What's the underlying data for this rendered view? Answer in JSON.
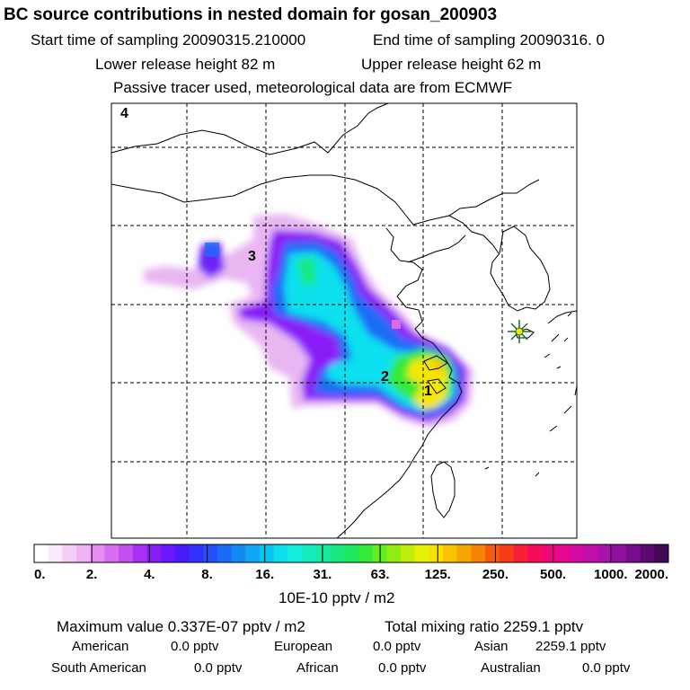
{
  "header": {
    "title": "BC  source contributions in nested domain for gosan_200903",
    "start_label": "Start time of sampling 20090315.210000",
    "end_label": "End time of sampling 20090316.     0",
    "lower_height": "Lower release height   82 m",
    "upper_height": "Upper release height   62 m",
    "tracer_note": "Passive tracer used, meteorological data are from ECMWF"
  },
  "chart_data": {
    "type": "heatmap",
    "title": "BC  source contributions in nested domain for gosan_200903",
    "map_labels": [
      "4",
      "3",
      "2",
      "1"
    ],
    "receptor": "gosan",
    "colorbar": {
      "ticks": [
        "0.",
        "2.",
        "4.",
        "8.",
        "16.",
        "31.",
        "63.",
        "125.",
        "250.",
        "500.",
        "1000.",
        "2000."
      ],
      "units": "10E-10 pptv / m2",
      "colors": [
        "#ffffff",
        "#fbe8fb",
        "#f5cdf7",
        "#efb3f3",
        "#e68ff1",
        "#d86cf0",
        "#c64ff2",
        "#a92ff5",
        "#8a1df7",
        "#6a18fa",
        "#4b1bfb",
        "#3232fb",
        "#2350fa",
        "#1a6cf7",
        "#1389f5",
        "#0ea7f3",
        "#0cc4f1",
        "#0ce0ee",
        "#12eddc",
        "#16ecc0",
        "#18eaa2",
        "#19e880",
        "#1de85f",
        "#35ea34",
        "#63ec22",
        "#91ee14",
        "#beef0a",
        "#e6f006",
        "#f8e004",
        "#f9c304",
        "#f9a405",
        "#f98306",
        "#f85c0c",
        "#f73c18",
        "#f72036",
        "#f50c58",
        "#f20478",
        "#e60892",
        "#d40ba3",
        "#c10fae",
        "#aa12ad",
        "#9010a0",
        "#760d8c",
        "#5c0a72",
        "#420757"
      ]
    }
  },
  "footer": {
    "max_value": "Maximum value  0.337E-07 pptv / m2",
    "total_mixing": "Total mixing ratio     2259.1 pptv",
    "rows": [
      [
        {
          "label": "American",
          "value": "0.0 pptv"
        },
        {
          "label": "European",
          "value": "0.0 pptv"
        },
        {
          "label": "Asian",
          "value": "2259.1 pptv"
        }
      ],
      [
        {
          "label": "South American",
          "value": "0.0 pptv"
        },
        {
          "label": "African",
          "value": "0.0 pptv"
        },
        {
          "label": "Australian",
          "value": "0.0 pptv"
        }
      ]
    ]
  }
}
